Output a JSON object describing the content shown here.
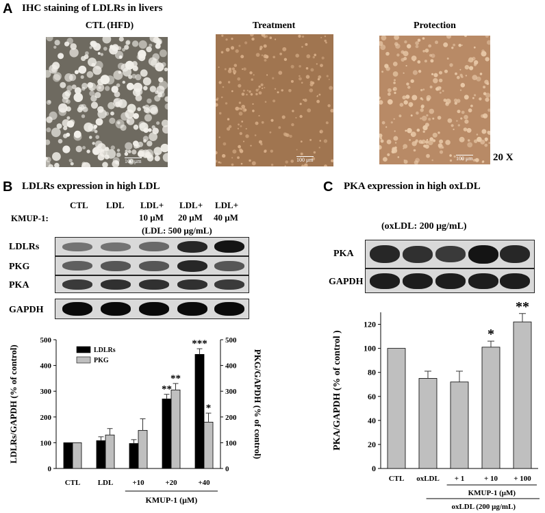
{
  "panelA": {
    "letter": "A",
    "title": "IHC staining of LDLRs in livers",
    "images": [
      {
        "label": "CTL (HFD)",
        "scale_text": "100 μm"
      },
      {
        "label": "Treatment",
        "scale_text": "100 μm"
      },
      {
        "label": "Protection",
        "scale_text": "100 μm"
      }
    ],
    "magnification": "20 X"
  },
  "panelB": {
    "letter": "B",
    "title": "LDLRs expression in high LDL",
    "row_label": "KMUP-1:",
    "lanes": [
      "CTL",
      "LDL",
      "LDL+",
      "LDL+",
      "LDL+"
    ],
    "lanes_sub": [
      "",
      "",
      "10 μM",
      "20 μM",
      "40 μM"
    ],
    "condition": "(LDL: 500 μg/mL)",
    "blots": [
      "LDLRs",
      "PKG",
      "PKA",
      "GAPDH"
    ],
    "band_intensity": {
      "LDLRs": [
        0.45,
        0.45,
        0.5,
        0.85,
        0.95
      ],
      "PKG": [
        0.55,
        0.6,
        0.6,
        0.85,
        0.6
      ],
      "PKA": [
        0.75,
        0.8,
        0.8,
        0.8,
        0.75
      ],
      "GAPDH": [
        1,
        1,
        1,
        1,
        1
      ]
    }
  },
  "panelC": {
    "letter": "C",
    "title": "PKA expression in high oxLDL",
    "condition": "(oxLDL: 200 μg/mL)",
    "blots": [
      "PKA",
      "GAPDH"
    ],
    "band_intensity": {
      "PKA": [
        0.85,
        0.8,
        0.75,
        0.95,
        0.85
      ],
      "GAPDH": [
        0.9,
        0.9,
        0.9,
        0.9,
        0.9
      ]
    }
  },
  "chart_data": [
    {
      "type": "bar",
      "categories": [
        "CTL",
        "LDL",
        "+10",
        "+20",
        "+40"
      ],
      "series": [
        {
          "name": "LDLRs",
          "values": [
            100,
            108,
            97,
            270,
            443
          ],
          "errors": [
            0,
            15,
            15,
            18,
            22
          ],
          "color": "#000000"
        },
        {
          "name": "PKG",
          "values": [
            100,
            130,
            148,
            305,
            180
          ],
          "errors": [
            0,
            25,
            45,
            25,
            35
          ],
          "color": "#bfbfbf"
        }
      ],
      "annotations": {
        "LDLRs": [
          "",
          "",
          "",
          "**",
          "***"
        ],
        "PKG": [
          "",
          "",
          "",
          "**",
          "*"
        ]
      },
      "ylabel": "LDLRs/GAPDH (% of control)",
      "ylabel_right": "PKG/GAPDH (% of control)",
      "xlabel": "KMUP-1 (μM)",
      "ylim": [
        0,
        500
      ],
      "yticks": [
        0,
        100,
        200,
        300,
        400,
        500
      ],
      "legend": "top-left"
    },
    {
      "type": "bar",
      "categories": [
        "CTL",
        "oxLDL",
        "+ 1",
        "+ 10",
        "+ 100"
      ],
      "series": [
        {
          "values": [
            100,
            75,
            72,
            101,
            122
          ],
          "errors": [
            0,
            6,
            9,
            5,
            7
          ],
          "color": "#bfbfbf"
        }
      ],
      "annotations": [
        "",
        "",
        "",
        "*",
        "**"
      ],
      "ylabel": "PKA/GAPDH (% of control )",
      "xlabel": "KMUP-1 (μM)",
      "xlabel2": "oxLDL (200 μg/mL)",
      "ylim": [
        0,
        130
      ],
      "yticks": [
        0,
        20,
        40,
        60,
        80,
        100,
        120
      ]
    }
  ]
}
